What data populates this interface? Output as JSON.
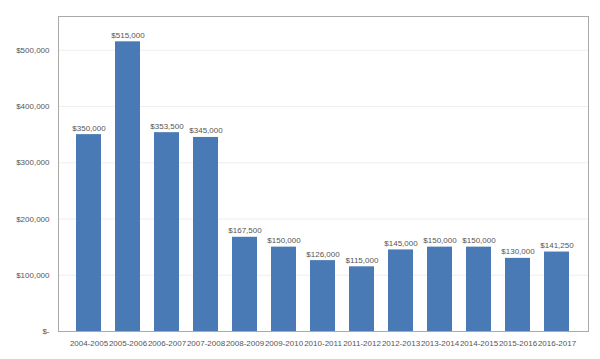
{
  "chart_data": {
    "type": "bar",
    "categories": [
      "2004-2005",
      "2005-2006",
      "2006-2007",
      "2007-2008",
      "2008-2009",
      "2009-2010",
      "2010-2011",
      "2011-2012",
      "2012-2013",
      "2013-2014",
      "2014-2015",
      "2015-2016",
      "2016-2017"
    ],
    "values": [
      350000,
      515000,
      353500,
      345000,
      167500,
      150000,
      126000,
      115000,
      145000,
      150000,
      150000,
      130000,
      141250
    ],
    "value_labels": [
      "$350,000",
      "$515,000",
      "$353,500",
      "$345,000",
      "$167,500",
      "$150,000",
      "$126,000",
      "$115,000",
      "$145,000",
      "$150,000",
      "$150,000",
      "$130,000",
      "$141,250"
    ],
    "color": "#4a7ab5",
    "ylim": [
      0,
      560000
    ],
    "yticks": [
      {
        "value": 0,
        "label": "$-"
      },
      {
        "value": 100000,
        "label": "$100,000"
      },
      {
        "value": 200000,
        "label": "$200,000"
      },
      {
        "value": 300000,
        "label": "$300,000"
      },
      {
        "value": 400000,
        "label": "$400,000"
      },
      {
        "value": 500000,
        "label": "$500,000"
      }
    ],
    "grid": true,
    "data_labels": true
  }
}
